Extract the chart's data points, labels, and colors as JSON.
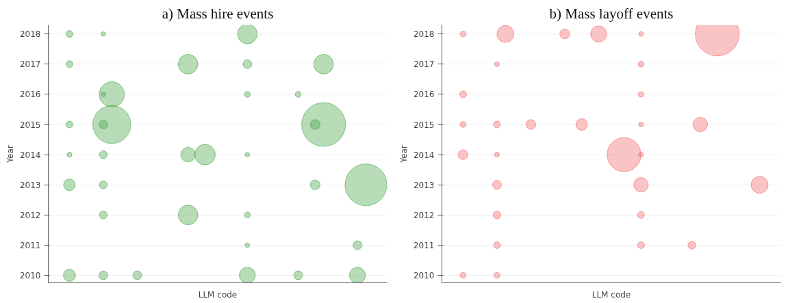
{
  "chart_data": [
    {
      "type": "bubble",
      "title": "a) Mass hire events",
      "xlabel": "LLM code",
      "ylabel": "Year",
      "categories": [
        null,
        null,
        null,
        null,
        null,
        null,
        null,
        null,
        null,
        null,
        null,
        null,
        null,
        null,
        null,
        null,
        null,
        null,
        null,
        null,
        null,
        null,
        null,
        null,
        null,
        null,
        null,
        null,
        null,
        null,
        null,
        null,
        null,
        null,
        null,
        null,
        null,
        null,
        null,
        null
      ],
      "ylim": [
        2009.75,
        2018.3
      ],
      "yticks": [
        2010,
        2011,
        2012,
        2013,
        2014,
        2015,
        2016,
        2017,
        2018
      ],
      "grid": "y",
      "tick_labels": "y",
      "series": [
        {
          "color": "#4aa84a",
          "values": [
            null,
            null,
            2018,
            null,
            null,
            null,
            2018,
            null,
            null,
            null,
            null,
            null,
            null,
            null,
            null,
            null,
            null,
            null,
            null,
            null,
            null,
            null,
            null,
            2018,
            null,
            null,
            null,
            null,
            null,
            null,
            null,
            null,
            null,
            null,
            null,
            null,
            null,
            null,
            null,
            null
          ],
          "sizes": [
            null,
            null,
            0.024,
            null,
            null,
            null,
            0.01,
            null,
            null,
            null,
            null,
            null,
            null,
            null,
            null,
            null,
            null,
            null,
            null,
            null,
            null,
            null,
            null,
            0.2,
            null,
            null,
            null,
            null,
            null,
            null,
            null,
            null,
            null,
            null,
            null,
            null,
            null,
            null,
            null,
            null
          ]
        },
        {
          "color": "#4aa84a",
          "values": [
            null,
            null,
            2017,
            null,
            null,
            null,
            null,
            null,
            null,
            null,
            null,
            null,
            null,
            null,
            null,
            null,
            2017,
            null,
            null,
            null,
            null,
            null,
            null,
            2017,
            null,
            null,
            null,
            null,
            null,
            null,
            null,
            null,
            2017,
            null,
            null,
            null,
            null,
            null,
            null,
            null
          ],
          "sizes": [
            null,
            null,
            0.024,
            null,
            null,
            null,
            null,
            null,
            null,
            null,
            null,
            null,
            null,
            null,
            null,
            null,
            0.2,
            null,
            null,
            null,
            null,
            null,
            null,
            0.04,
            null,
            null,
            null,
            null,
            null,
            null,
            null,
            null,
            0.2,
            null,
            null,
            null,
            null,
            null,
            null,
            null
          ]
        },
        {
          "color": "#4aa84a",
          "values": [
            null,
            null,
            null,
            null,
            null,
            null,
            2016,
            2016,
            null,
            null,
            null,
            null,
            null,
            null,
            null,
            null,
            null,
            null,
            null,
            null,
            null,
            null,
            null,
            2016,
            null,
            null,
            null,
            null,
            null,
            2016,
            null,
            null,
            null,
            null,
            null,
            null,
            null,
            null,
            null,
            null
          ],
          "sizes": [
            null,
            null,
            null,
            null,
            null,
            null,
            0.012,
            0.33,
            null,
            null,
            null,
            null,
            null,
            null,
            null,
            null,
            null,
            null,
            null,
            null,
            null,
            null,
            null,
            0.018,
            null,
            null,
            null,
            null,
            null,
            0.018,
            null,
            null,
            null,
            null,
            null,
            null,
            null,
            null,
            null,
            null
          ]
        },
        {
          "color": "#4aa84a",
          "values": [
            null,
            null,
            2015,
            null,
            null,
            null,
            2015,
            2015,
            null,
            null,
            null,
            null,
            null,
            null,
            null,
            null,
            null,
            null,
            null,
            null,
            null,
            null,
            null,
            null,
            null,
            null,
            null,
            null,
            null,
            null,
            null,
            2015,
            2015,
            null,
            null,
            null,
            null,
            null,
            null,
            null
          ],
          "sizes": [
            null,
            null,
            0.024,
            null,
            null,
            null,
            0.04,
            0.75,
            null,
            null,
            null,
            null,
            null,
            null,
            null,
            null,
            null,
            null,
            null,
            null,
            null,
            null,
            null,
            null,
            null,
            null,
            null,
            null,
            null,
            null,
            null,
            0.05,
            1,
            null,
            null,
            null,
            null,
            null,
            null,
            null
          ]
        },
        {
          "color": "#4aa84a",
          "values": [
            null,
            null,
            2014,
            null,
            null,
            null,
            2014,
            null,
            null,
            null,
            null,
            null,
            null,
            null,
            null,
            null,
            2014,
            null,
            2014,
            null,
            null,
            null,
            null,
            2014,
            null,
            null,
            null,
            null,
            null,
            null,
            null,
            null,
            null,
            null,
            null,
            null,
            null,
            null,
            null,
            null
          ],
          "sizes": [
            null,
            null,
            0.012,
            null,
            null,
            null,
            0.032,
            null,
            null,
            null,
            null,
            null,
            null,
            null,
            null,
            null,
            0.11,
            null,
            0.22,
            null,
            null,
            null,
            null,
            0.01,
            null,
            null,
            null,
            null,
            null,
            null,
            null,
            null,
            null,
            null,
            null,
            null,
            null,
            null,
            null,
            null
          ]
        },
        {
          "color": "#4aa84a",
          "values": [
            null,
            null,
            2013,
            null,
            null,
            null,
            2013,
            null,
            null,
            null,
            null,
            null,
            null,
            null,
            null,
            null,
            null,
            null,
            null,
            null,
            null,
            null,
            null,
            null,
            null,
            null,
            null,
            null,
            null,
            null,
            null,
            2013,
            null,
            null,
            null,
            null,
            null,
            2013,
            null,
            null
          ],
          "sizes": [
            null,
            null,
            0.07,
            null,
            null,
            null,
            0.032,
            null,
            null,
            null,
            null,
            null,
            null,
            null,
            null,
            null,
            null,
            null,
            null,
            null,
            null,
            null,
            null,
            null,
            null,
            null,
            null,
            null,
            null,
            null,
            null,
            0.05,
            null,
            null,
            null,
            null,
            null,
            0.91,
            null,
            null
          ]
        },
        {
          "color": "#4aa84a",
          "values": [
            null,
            null,
            null,
            null,
            null,
            null,
            2012,
            null,
            null,
            null,
            null,
            null,
            null,
            null,
            null,
            null,
            2012,
            null,
            null,
            null,
            null,
            null,
            null,
            2012,
            null,
            null,
            null,
            null,
            null,
            null,
            null,
            null,
            null,
            null,
            null,
            null,
            null,
            null,
            null,
            null
          ],
          "sizes": [
            null,
            null,
            null,
            null,
            null,
            null,
            0.032,
            null,
            null,
            null,
            null,
            null,
            null,
            null,
            null,
            null,
            0.2,
            null,
            null,
            null,
            null,
            null,
            null,
            0.018,
            null,
            null,
            null,
            null,
            null,
            null,
            null,
            null,
            null,
            null,
            null,
            null,
            null,
            null,
            null,
            null
          ]
        },
        {
          "color": "#4aa84a",
          "values": [
            null,
            null,
            null,
            null,
            null,
            null,
            null,
            null,
            null,
            null,
            null,
            null,
            null,
            null,
            null,
            null,
            null,
            null,
            null,
            null,
            null,
            null,
            null,
            2011,
            null,
            null,
            null,
            null,
            null,
            null,
            null,
            null,
            null,
            null,
            null,
            null,
            2011,
            null,
            null,
            null
          ],
          "sizes": [
            null,
            null,
            null,
            null,
            null,
            null,
            null,
            null,
            null,
            null,
            null,
            null,
            null,
            null,
            null,
            null,
            null,
            null,
            null,
            null,
            null,
            null,
            null,
            0.01,
            null,
            null,
            null,
            null,
            null,
            null,
            null,
            null,
            null,
            null,
            null,
            null,
            0.04,
            null,
            null,
            null
          ]
        },
        {
          "color": "#4aa84a",
          "values": [
            null,
            null,
            2010,
            null,
            null,
            null,
            2010,
            null,
            null,
            null,
            2010,
            null,
            null,
            null,
            null,
            null,
            null,
            null,
            null,
            null,
            null,
            null,
            null,
            2010,
            null,
            null,
            null,
            null,
            null,
            2010,
            null,
            null,
            null,
            null,
            null,
            null,
            2010,
            null,
            null,
            null
          ],
          "sizes": [
            null,
            null,
            0.077,
            null,
            null,
            null,
            0.04,
            null,
            null,
            null,
            0.04,
            null,
            null,
            null,
            null,
            null,
            null,
            null,
            null,
            null,
            null,
            null,
            null,
            0.134,
            null,
            null,
            null,
            null,
            null,
            0.04,
            null,
            null,
            null,
            null,
            null,
            null,
            0.134,
            null,
            null,
            null
          ]
        }
      ]
    },
    {
      "type": "bubble",
      "title": "b) Mass layoff events",
      "xlabel": "LLM code",
      "ylabel": "Year",
      "categories": [
        null,
        null,
        null,
        null,
        null,
        null,
        null,
        null,
        null,
        null,
        null,
        null,
        null,
        null,
        null,
        null,
        null,
        null,
        null,
        null,
        null,
        null,
        null,
        null,
        null,
        null,
        null,
        null,
        null,
        null,
        null,
        null,
        null,
        null,
        null,
        null,
        null,
        null,
        null,
        null
      ],
      "ylim": [
        2009.75,
        2018.3
      ],
      "yticks": [
        2010,
        2011,
        2012,
        2013,
        2014,
        2015,
        2016,
        2017,
        2018
      ],
      "grid": "y",
      "tick_labels": "y",
      "series": [
        {
          "color": "#f26b6b",
          "values": [
            null,
            null,
            2018,
            null,
            null,
            null,
            null,
            2018,
            null,
            null,
            null,
            null,
            null,
            null,
            2018,
            null,
            null,
            null,
            2018,
            null,
            null,
            null,
            null,
            2018,
            null,
            null,
            null,
            null,
            null,
            null,
            null,
            null,
            2018,
            null,
            null,
            null,
            null,
            null,
            null,
            null
          ],
          "sizes": [
            null,
            null,
            0.018,
            null,
            null,
            null,
            null,
            0.15,
            null,
            null,
            null,
            null,
            null,
            null,
            0.05,
            null,
            null,
            null,
            0.134,
            null,
            null,
            null,
            null,
            0.012,
            null,
            null,
            null,
            null,
            null,
            null,
            null,
            null,
            1,
            null,
            null,
            null,
            null,
            null,
            null,
            null
          ]
        },
        {
          "color": "#f26b6b",
          "values": [
            null,
            null,
            null,
            null,
            null,
            null,
            2017,
            null,
            null,
            null,
            null,
            null,
            null,
            null,
            null,
            null,
            null,
            null,
            null,
            null,
            null,
            null,
            null,
            2017,
            null,
            null,
            null,
            null,
            null,
            null,
            null,
            null,
            null,
            null,
            null,
            null,
            null,
            null,
            null,
            null
          ],
          "sizes": [
            null,
            null,
            null,
            null,
            null,
            null,
            0.012,
            null,
            null,
            null,
            null,
            null,
            null,
            null,
            null,
            null,
            null,
            null,
            null,
            null,
            null,
            null,
            null,
            0.018,
            null,
            null,
            null,
            null,
            null,
            null,
            null,
            null,
            null,
            null,
            null,
            null,
            null,
            null,
            null,
            null
          ]
        },
        {
          "color": "#f26b6b",
          "values": [
            null,
            null,
            2016,
            null,
            null,
            null,
            null,
            null,
            null,
            null,
            null,
            null,
            null,
            null,
            null,
            null,
            null,
            null,
            null,
            null,
            null,
            null,
            null,
            2016,
            null,
            null,
            null,
            null,
            null,
            null,
            null,
            null,
            null,
            null,
            null,
            null,
            null,
            null,
            null,
            null
          ],
          "sizes": [
            null,
            null,
            0.024,
            null,
            null,
            null,
            null,
            null,
            null,
            null,
            null,
            null,
            null,
            null,
            null,
            null,
            null,
            null,
            null,
            null,
            null,
            null,
            null,
            0.015,
            null,
            null,
            null,
            null,
            null,
            null,
            null,
            null,
            null,
            null,
            null,
            null,
            null,
            null,
            null,
            null
          ]
        },
        {
          "color": "#f26b6b",
          "values": [
            null,
            null,
            2015,
            null,
            null,
            null,
            2015,
            null,
            null,
            null,
            2015,
            null,
            null,
            null,
            null,
            null,
            2015,
            null,
            null,
            null,
            null,
            null,
            null,
            2015,
            null,
            null,
            null,
            null,
            null,
            null,
            2015,
            null,
            null,
            null,
            null,
            null,
            null,
            null,
            null,
            null
          ],
          "sizes": [
            null,
            null,
            0.018,
            null,
            null,
            null,
            0.024,
            null,
            null,
            null,
            0.05,
            null,
            null,
            null,
            null,
            null,
            0.07,
            null,
            null,
            null,
            null,
            null,
            null,
            0.012,
            null,
            null,
            null,
            null,
            null,
            null,
            0.11,
            null,
            null,
            null,
            null,
            null,
            null,
            null,
            null,
            null
          ]
        },
        {
          "color": "#f26b6b",
          "values": [
            null,
            null,
            2014,
            null,
            null,
            null,
            2014,
            null,
            null,
            null,
            null,
            null,
            null,
            null,
            null,
            null,
            null,
            null,
            null,
            null,
            null,
            2014,
            null,
            2014,
            null,
            null,
            null,
            null,
            null,
            null,
            null,
            null,
            null,
            null,
            null,
            null,
            null,
            null,
            null,
            null
          ],
          "sizes": [
            null,
            null,
            0.05,
            null,
            null,
            null,
            0.012,
            null,
            null,
            null,
            null,
            null,
            null,
            null,
            null,
            null,
            null,
            null,
            null,
            null,
            null,
            0.6,
            null,
            0.012,
            null,
            null,
            null,
            null,
            null,
            null,
            null,
            null,
            null,
            null,
            null,
            null,
            null,
            null,
            null,
            null
          ]
        },
        {
          "color": "#f26b6b",
          "values": [
            null,
            null,
            null,
            null,
            null,
            null,
            2013,
            null,
            null,
            null,
            null,
            null,
            null,
            null,
            null,
            null,
            null,
            null,
            null,
            null,
            null,
            null,
            null,
            2013,
            null,
            null,
            null,
            null,
            null,
            null,
            null,
            null,
            null,
            null,
            null,
            null,
            null,
            2013,
            null,
            null
          ],
          "sizes": [
            null,
            null,
            null,
            null,
            null,
            null,
            0.04,
            null,
            null,
            null,
            null,
            null,
            null,
            null,
            null,
            null,
            null,
            null,
            null,
            null,
            null,
            null,
            null,
            0.11,
            null,
            null,
            null,
            null,
            null,
            null,
            null,
            null,
            null,
            null,
            null,
            null,
            null,
            0.15,
            null,
            null
          ]
        },
        {
          "color": "#f26b6b",
          "values": [
            null,
            null,
            null,
            null,
            null,
            null,
            2012,
            null,
            null,
            null,
            null,
            null,
            null,
            null,
            null,
            null,
            null,
            null,
            null,
            null,
            null,
            null,
            null,
            2012,
            null,
            null,
            null,
            null,
            null,
            null,
            null,
            null,
            null,
            null,
            null,
            null,
            null,
            null,
            null,
            null
          ],
          "sizes": [
            null,
            null,
            null,
            null,
            null,
            null,
            0.032,
            null,
            null,
            null,
            null,
            null,
            null,
            null,
            null,
            null,
            null,
            null,
            null,
            null,
            null,
            null,
            null,
            0.024,
            null,
            null,
            null,
            null,
            null,
            null,
            null,
            null,
            null,
            null,
            null,
            null,
            null,
            null,
            null,
            null
          ]
        },
        {
          "color": "#f26b6b",
          "values": [
            null,
            null,
            null,
            null,
            null,
            null,
            2011,
            null,
            null,
            null,
            null,
            null,
            null,
            null,
            null,
            null,
            null,
            null,
            null,
            null,
            null,
            null,
            null,
            2011,
            null,
            null,
            null,
            null,
            null,
            2011,
            null,
            null,
            null,
            null,
            null,
            null,
            null,
            null,
            null,
            null
          ],
          "sizes": [
            null,
            null,
            null,
            null,
            null,
            null,
            0.024,
            null,
            null,
            null,
            null,
            null,
            null,
            null,
            null,
            null,
            null,
            null,
            null,
            null,
            null,
            null,
            null,
            0.024,
            null,
            null,
            null,
            null,
            null,
            0.032,
            null,
            null,
            null,
            null,
            null,
            null,
            null,
            null,
            null,
            null
          ]
        },
        {
          "color": "#f26b6b",
          "values": [
            null,
            null,
            2010,
            null,
            null,
            null,
            2010,
            null,
            null,
            null,
            null,
            null,
            null,
            null,
            null,
            null,
            null,
            null,
            null,
            null,
            null,
            null,
            null,
            null,
            null,
            null,
            null,
            null,
            null,
            null,
            null,
            null,
            null,
            null,
            null,
            null,
            null,
            null,
            null,
            null
          ],
          "sizes": [
            null,
            null,
            0.018,
            null,
            null,
            null,
            0.018,
            null,
            null,
            null,
            null,
            null,
            null,
            null,
            null,
            null,
            null,
            null,
            null,
            null,
            null,
            null,
            null,
            null,
            null,
            null,
            null,
            null,
            null,
            null,
            null,
            null,
            null,
            null,
            null,
            null,
            null,
            null,
            null,
            null
          ]
        }
      ]
    }
  ]
}
